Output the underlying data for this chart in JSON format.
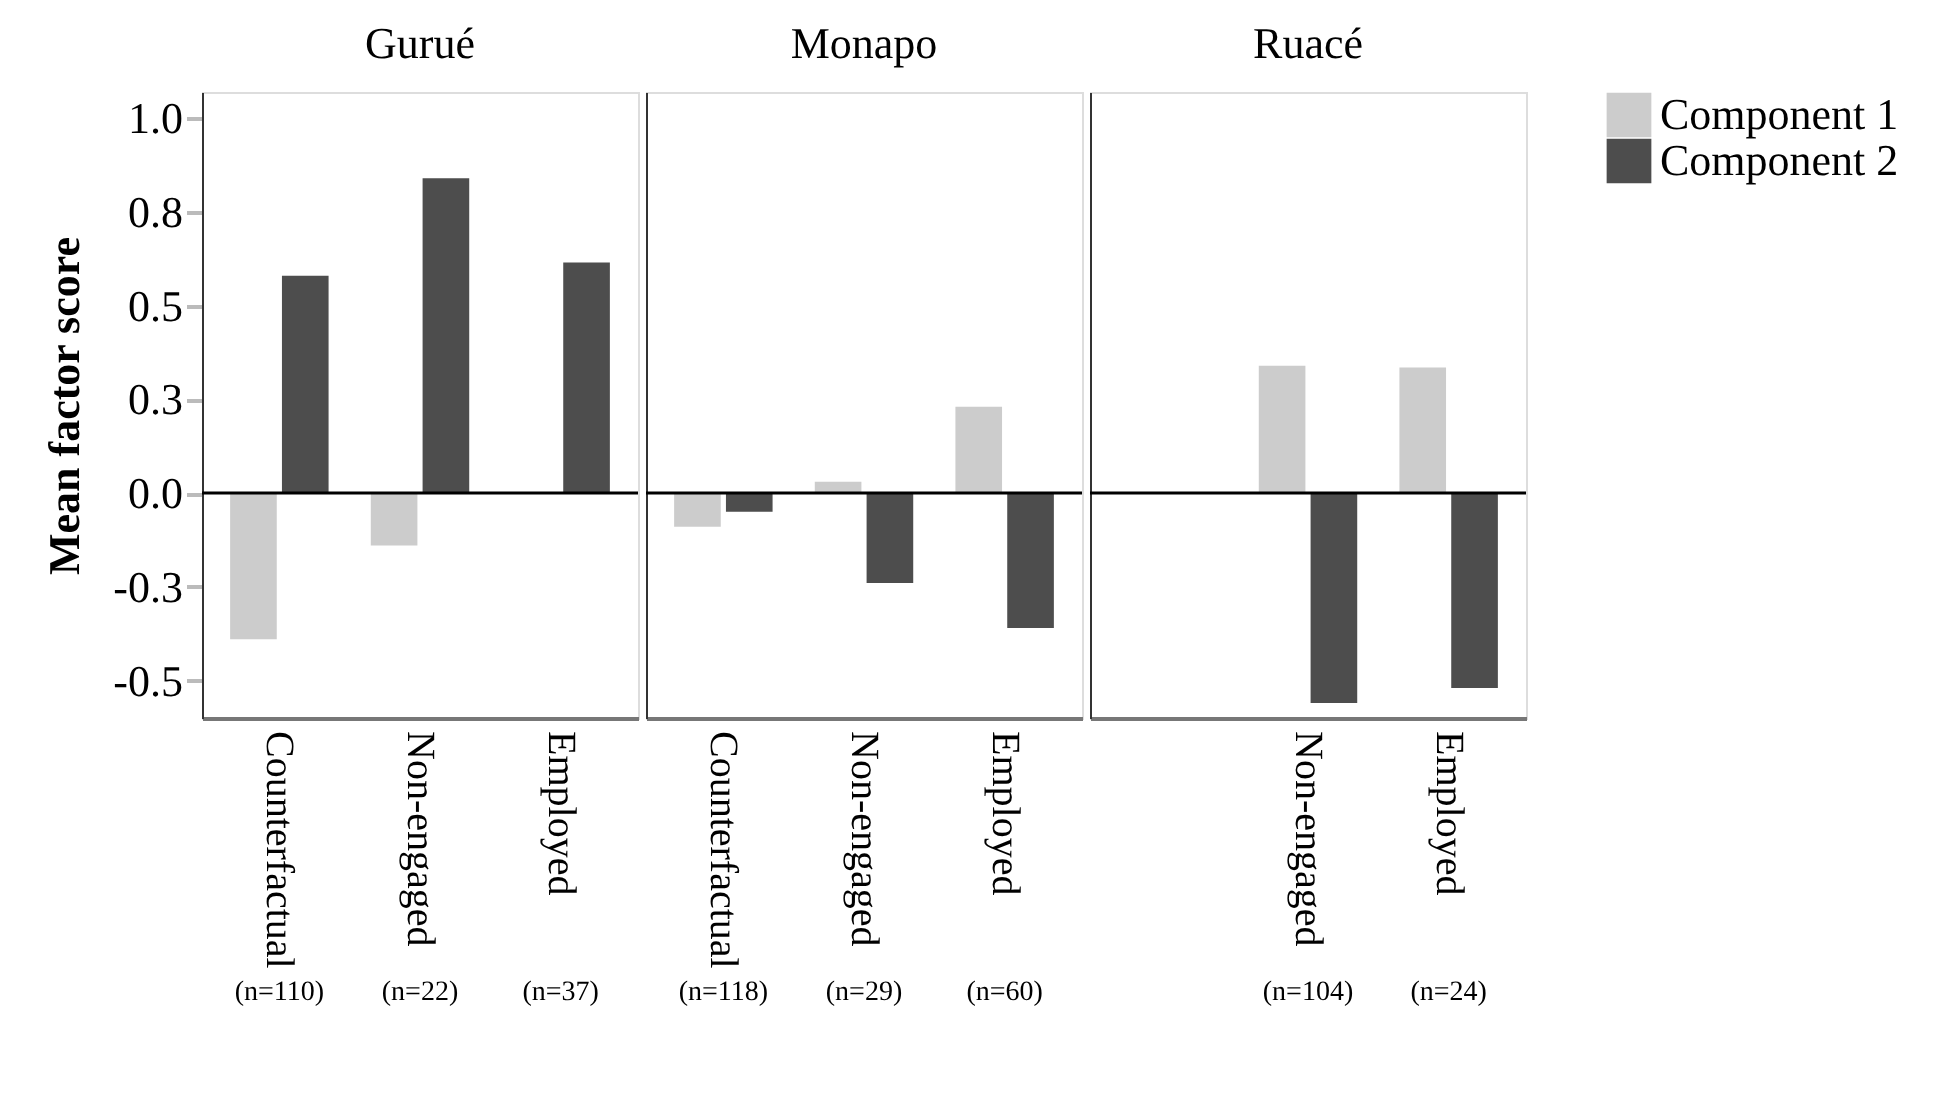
{
  "chart_data": [
    {
      "type": "bar",
      "title": "Gurué",
      "ylabel": "Mean factor score",
      "categories": [
        "Counterfactual",
        "Non-engaged",
        "Employed"
      ],
      "series": [
        {
          "color": "#cccccc",
          "values": [
            -0.39,
            -0.14,
            0.0
          ]
        },
        {
          "color": "#4d4d4d",
          "values": [
            0.58,
            0.84,
            0.615
          ]
        }
      ],
      "ylim": [
        -0.6,
        1.07
      ],
      "yticks": [
        {
          "value": 1.0,
          "label": "1.0"
        },
        {
          "value": 0.75,
          "label": "0.8"
        },
        {
          "value": 0.5,
          "label": "0.5"
        },
        {
          "value": 0.25,
          "label": "0.3"
        },
        {
          "value": 0,
          "label": "0.0"
        },
        {
          "value": -0.25,
          "label": "-0.3"
        },
        {
          "value": -0.5,
          "label": "-0.5"
        }
      ],
      "ref_lines": [
        {
          "axis": "y",
          "value": 0,
          "color": "#000000"
        }
      ],
      "annotations": [
        "(n=110)",
        "(n=22)",
        "(n=37)"
      ],
      "grid": false,
      "legend": false
    },
    {
      "type": "bar",
      "title": "Monapo",
      "categories": [
        "Counterfactual",
        "Non-engaged",
        "Employed"
      ],
      "series": [
        {
          "color": "#cccccc",
          "values": [
            -0.09,
            0.03,
            0.23
          ]
        },
        {
          "color": "#4d4d4d",
          "values": [
            -0.05,
            -0.24,
            -0.36
          ]
        }
      ],
      "ylim": [
        -0.6,
        1.07
      ],
      "tick_labels": "x",
      "ref_lines": [
        {
          "axis": "y",
          "value": 0,
          "color": "#000000"
        }
      ],
      "annotations": [
        "(n=118)",
        "(n=29)",
        "(n=60)"
      ],
      "grid": false,
      "legend": false
    },
    {
      "type": "bar",
      "title": "Ruacé",
      "categories": [
        null,
        "Non-engaged",
        "Employed"
      ],
      "series": [
        {
          "name": "Component 1",
          "color": "#cccccc",
          "values": [
            null,
            0.34,
            0.335
          ]
        },
        {
          "name": "Component 2",
          "color": "#4d4d4d",
          "values": [
            null,
            -0.56,
            -0.52
          ]
        }
      ],
      "ylim": [
        -0.6,
        1.07
      ],
      "tick_labels": "x",
      "ref_lines": [
        {
          "axis": "y",
          "value": 0,
          "color": "#000000"
        }
      ],
      "annotations": [
        "(n=104)",
        "(n=24)"
      ],
      "grid": false,
      "legend": "top right"
    }
  ]
}
